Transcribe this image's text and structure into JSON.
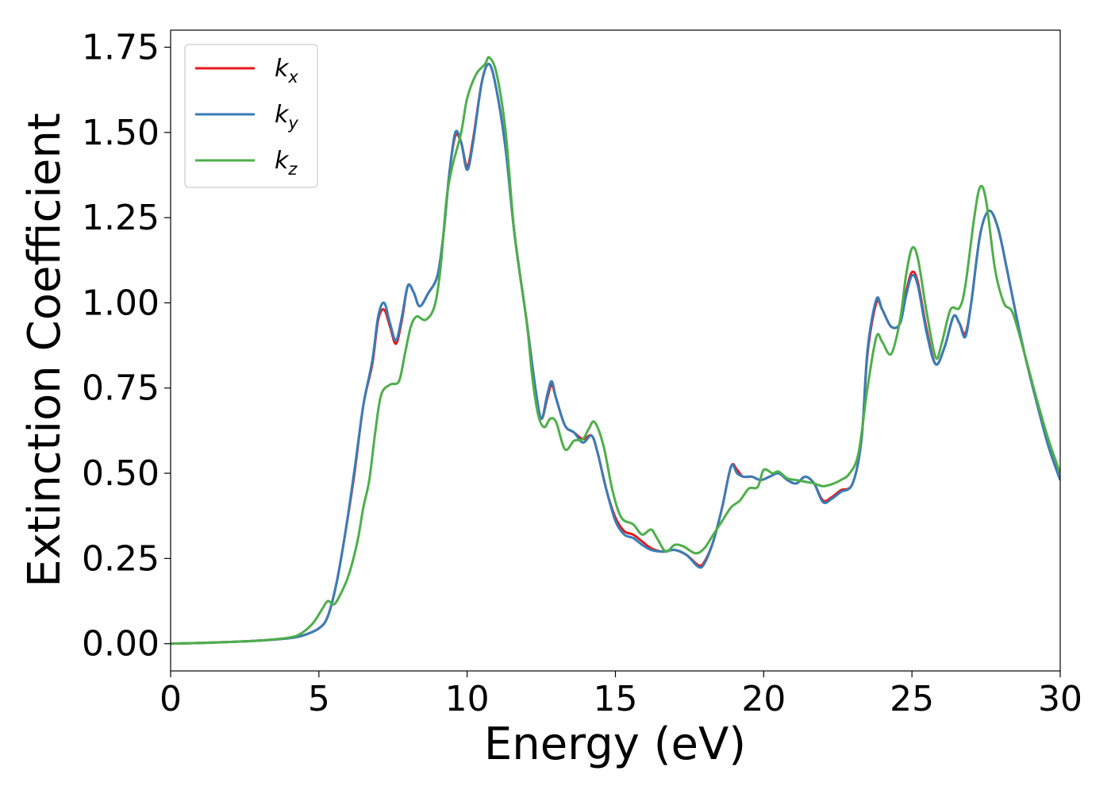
{
  "chart_data": {
    "type": "line",
    "xlabel": "Energy (eV)",
    "ylabel": "Extinction Coefficient",
    "xlim": [
      0,
      30
    ],
    "ylim": [
      -0.08,
      1.8
    ],
    "xticks": [
      "0",
      "5",
      "10",
      "15",
      "20",
      "25",
      "30"
    ],
    "yticks": [
      "0.00",
      "0.25",
      "0.50",
      "0.75",
      "1.00",
      "1.25",
      "1.50",
      "1.75"
    ],
    "grid": false,
    "legend_position": "top-left",
    "series": [
      {
        "name": "k",
        "subscript": "x",
        "color": "#e41a1c",
        "points": [
          [
            0,
            0
          ],
          [
            1,
            0.002
          ],
          [
            2,
            0.005
          ],
          [
            3,
            0.009
          ],
          [
            4,
            0.016
          ],
          [
            4.5,
            0.025
          ],
          [
            5,
            0.045
          ],
          [
            5.3,
            0.08
          ],
          [
            5.6,
            0.18
          ],
          [
            5.9,
            0.33
          ],
          [
            6.2,
            0.5
          ],
          [
            6.5,
            0.7
          ],
          [
            6.8,
            0.82
          ],
          [
            7.0,
            0.95
          ],
          [
            7.2,
            0.98
          ],
          [
            7.4,
            0.93
          ],
          [
            7.6,
            0.88
          ],
          [
            7.8,
            0.95
          ],
          [
            8.0,
            1.05
          ],
          [
            8.2,
            1.03
          ],
          [
            8.4,
            0.99
          ],
          [
            8.7,
            1.03
          ],
          [
            9.0,
            1.08
          ],
          [
            9.2,
            1.2
          ],
          [
            9.4,
            1.38
          ],
          [
            9.6,
            1.49
          ],
          [
            9.8,
            1.47
          ],
          [
            10.0,
            1.4
          ],
          [
            10.2,
            1.48
          ],
          [
            10.5,
            1.65
          ],
          [
            10.75,
            1.7
          ],
          [
            11.0,
            1.62
          ],
          [
            11.3,
            1.45
          ],
          [
            11.6,
            1.2
          ],
          [
            12.0,
            0.95
          ],
          [
            12.3,
            0.75
          ],
          [
            12.5,
            0.66
          ],
          [
            12.7,
            0.72
          ],
          [
            12.85,
            0.76
          ],
          [
            13.0,
            0.72
          ],
          [
            13.3,
            0.64
          ],
          [
            13.6,
            0.62
          ],
          [
            13.9,
            0.6
          ],
          [
            14.2,
            0.61
          ],
          [
            14.4,
            0.56
          ],
          [
            14.7,
            0.45
          ],
          [
            15.0,
            0.37
          ],
          [
            15.3,
            0.33
          ],
          [
            15.6,
            0.32
          ],
          [
            15.9,
            0.3
          ],
          [
            16.2,
            0.28
          ],
          [
            16.6,
            0.27
          ],
          [
            17.0,
            0.275
          ],
          [
            17.4,
            0.26
          ],
          [
            17.8,
            0.23
          ],
          [
            18.0,
            0.24
          ],
          [
            18.3,
            0.3
          ],
          [
            18.6,
            0.4
          ],
          [
            18.9,
            0.52
          ],
          [
            19.1,
            0.51
          ],
          [
            19.3,
            0.49
          ],
          [
            19.6,
            0.49
          ],
          [
            19.9,
            0.48
          ],
          [
            20.2,
            0.49
          ],
          [
            20.5,
            0.5
          ],
          [
            20.8,
            0.48
          ],
          [
            21.1,
            0.47
          ],
          [
            21.4,
            0.49
          ],
          [
            21.7,
            0.47
          ],
          [
            22.0,
            0.42
          ],
          [
            22.3,
            0.43
          ],
          [
            22.6,
            0.45
          ],
          [
            23.0,
            0.47
          ],
          [
            23.3,
            0.6
          ],
          [
            23.5,
            0.85
          ],
          [
            23.8,
            1.0
          ],
          [
            24.0,
            0.98
          ],
          [
            24.3,
            0.93
          ],
          [
            24.6,
            0.94
          ],
          [
            24.8,
            1.03
          ],
          [
            25.0,
            1.09
          ],
          [
            25.2,
            1.06
          ],
          [
            25.5,
            0.92
          ],
          [
            25.8,
            0.82
          ],
          [
            26.1,
            0.87
          ],
          [
            26.4,
            0.96
          ],
          [
            26.6,
            0.94
          ],
          [
            26.8,
            0.91
          ],
          [
            27.0,
            1.0
          ],
          [
            27.3,
            1.2
          ],
          [
            27.6,
            1.27
          ],
          [
            27.9,
            1.22
          ],
          [
            28.2,
            1.1
          ],
          [
            28.5,
            0.97
          ],
          [
            28.8,
            0.85
          ],
          [
            29.2,
            0.71
          ],
          [
            29.6,
            0.58
          ],
          [
            30.0,
            0.48
          ]
        ]
      },
      {
        "name": "k",
        "subscript": "y",
        "color": "#377eb8",
        "points": [
          [
            0,
            0
          ],
          [
            1,
            0.002
          ],
          [
            2,
            0.005
          ],
          [
            3,
            0.009
          ],
          [
            4,
            0.016
          ],
          [
            4.5,
            0.025
          ],
          [
            5,
            0.045
          ],
          [
            5.3,
            0.08
          ],
          [
            5.6,
            0.18
          ],
          [
            5.9,
            0.33
          ],
          [
            6.2,
            0.51
          ],
          [
            6.5,
            0.7
          ],
          [
            6.8,
            0.83
          ],
          [
            7.0,
            0.96
          ],
          [
            7.2,
            1.0
          ],
          [
            7.4,
            0.94
          ],
          [
            7.6,
            0.89
          ],
          [
            7.8,
            0.96
          ],
          [
            8.0,
            1.05
          ],
          [
            8.2,
            1.03
          ],
          [
            8.4,
            0.99
          ],
          [
            8.7,
            1.03
          ],
          [
            9.0,
            1.08
          ],
          [
            9.2,
            1.2
          ],
          [
            9.4,
            1.38
          ],
          [
            9.6,
            1.5
          ],
          [
            9.8,
            1.47
          ],
          [
            10.0,
            1.39
          ],
          [
            10.2,
            1.47
          ],
          [
            10.5,
            1.65
          ],
          [
            10.75,
            1.7
          ],
          [
            11.0,
            1.62
          ],
          [
            11.3,
            1.45
          ],
          [
            11.6,
            1.2
          ],
          [
            12.0,
            0.95
          ],
          [
            12.3,
            0.75
          ],
          [
            12.5,
            0.66
          ],
          [
            12.7,
            0.73
          ],
          [
            12.85,
            0.77
          ],
          [
            13.0,
            0.72
          ],
          [
            13.3,
            0.64
          ],
          [
            13.6,
            0.62
          ],
          [
            13.9,
            0.59
          ],
          [
            14.2,
            0.61
          ],
          [
            14.4,
            0.56
          ],
          [
            14.7,
            0.45
          ],
          [
            15.0,
            0.36
          ],
          [
            15.3,
            0.32
          ],
          [
            15.6,
            0.31
          ],
          [
            15.9,
            0.29
          ],
          [
            16.2,
            0.275
          ],
          [
            16.6,
            0.27
          ],
          [
            17.0,
            0.275
          ],
          [
            17.4,
            0.26
          ],
          [
            17.8,
            0.225
          ],
          [
            18.0,
            0.235
          ],
          [
            18.3,
            0.3
          ],
          [
            18.6,
            0.4
          ],
          [
            18.9,
            0.52
          ],
          [
            19.1,
            0.5
          ],
          [
            19.3,
            0.49
          ],
          [
            19.6,
            0.49
          ],
          [
            19.9,
            0.48
          ],
          [
            20.2,
            0.49
          ],
          [
            20.5,
            0.5
          ],
          [
            20.8,
            0.48
          ],
          [
            21.1,
            0.47
          ],
          [
            21.4,
            0.49
          ],
          [
            21.7,
            0.47
          ],
          [
            22.0,
            0.415
          ],
          [
            22.3,
            0.425
          ],
          [
            22.6,
            0.445
          ],
          [
            23.0,
            0.47
          ],
          [
            23.3,
            0.6
          ],
          [
            23.5,
            0.86
          ],
          [
            23.8,
            1.01
          ],
          [
            24.0,
            0.98
          ],
          [
            24.3,
            0.93
          ],
          [
            24.6,
            0.94
          ],
          [
            24.8,
            1.02
          ],
          [
            25.0,
            1.08
          ],
          [
            25.2,
            1.05
          ],
          [
            25.5,
            0.91
          ],
          [
            25.8,
            0.82
          ],
          [
            26.1,
            0.87
          ],
          [
            26.4,
            0.96
          ],
          [
            26.6,
            0.94
          ],
          [
            26.8,
            0.9
          ],
          [
            27.0,
            1.0
          ],
          [
            27.3,
            1.2
          ],
          [
            27.6,
            1.27
          ],
          [
            27.9,
            1.22
          ],
          [
            28.2,
            1.1
          ],
          [
            28.5,
            0.97
          ],
          [
            28.8,
            0.85
          ],
          [
            29.2,
            0.71
          ],
          [
            29.6,
            0.58
          ],
          [
            30.0,
            0.48
          ]
        ]
      },
      {
        "name": "k",
        "subscript": "z",
        "color": "#4daf4a",
        "points": [
          [
            0,
            0
          ],
          [
            1,
            0.002
          ],
          [
            2,
            0.005
          ],
          [
            3,
            0.009
          ],
          [
            4,
            0.018
          ],
          [
            4.4,
            0.03
          ],
          [
            4.8,
            0.06
          ],
          [
            5.1,
            0.1
          ],
          [
            5.3,
            0.125
          ],
          [
            5.5,
            0.115
          ],
          [
            5.7,
            0.14
          ],
          [
            6.0,
            0.2
          ],
          [
            6.3,
            0.3
          ],
          [
            6.5,
            0.4
          ],
          [
            6.7,
            0.48
          ],
          [
            6.9,
            0.62
          ],
          [
            7.1,
            0.73
          ],
          [
            7.4,
            0.76
          ],
          [
            7.7,
            0.77
          ],
          [
            7.9,
            0.85
          ],
          [
            8.1,
            0.93
          ],
          [
            8.3,
            0.96
          ],
          [
            8.6,
            0.95
          ],
          [
            8.9,
            0.99
          ],
          [
            9.1,
            1.1
          ],
          [
            9.3,
            1.3
          ],
          [
            9.5,
            1.4
          ],
          [
            9.8,
            1.5
          ],
          [
            10.0,
            1.6
          ],
          [
            10.3,
            1.67
          ],
          [
            10.6,
            1.7
          ],
          [
            10.75,
            1.72
          ],
          [
            11.0,
            1.67
          ],
          [
            11.3,
            1.5
          ],
          [
            11.6,
            1.2
          ],
          [
            12.0,
            0.95
          ],
          [
            12.2,
            0.78
          ],
          [
            12.4,
            0.67
          ],
          [
            12.6,
            0.635
          ],
          [
            12.8,
            0.66
          ],
          [
            13.0,
            0.65
          ],
          [
            13.3,
            0.57
          ],
          [
            13.6,
            0.595
          ],
          [
            13.9,
            0.6
          ],
          [
            14.1,
            0.63
          ],
          [
            14.3,
            0.65
          ],
          [
            14.6,
            0.58
          ],
          [
            14.9,
            0.45
          ],
          [
            15.2,
            0.37
          ],
          [
            15.6,
            0.35
          ],
          [
            15.9,
            0.32
          ],
          [
            16.2,
            0.335
          ],
          [
            16.4,
            0.31
          ],
          [
            16.7,
            0.27
          ],
          [
            17.0,
            0.29
          ],
          [
            17.3,
            0.285
          ],
          [
            17.7,
            0.265
          ],
          [
            18.0,
            0.28
          ],
          [
            18.3,
            0.32
          ],
          [
            18.6,
            0.36
          ],
          [
            18.9,
            0.4
          ],
          [
            19.2,
            0.42
          ],
          [
            19.5,
            0.455
          ],
          [
            19.8,
            0.46
          ],
          [
            20.0,
            0.51
          ],
          [
            20.3,
            0.5
          ],
          [
            20.5,
            0.505
          ],
          [
            20.8,
            0.485
          ],
          [
            21.1,
            0.48
          ],
          [
            21.4,
            0.475
          ],
          [
            21.7,
            0.47
          ],
          [
            22.0,
            0.462
          ],
          [
            22.3,
            0.468
          ],
          [
            22.6,
            0.48
          ],
          [
            22.9,
            0.5
          ],
          [
            23.2,
            0.56
          ],
          [
            23.5,
            0.75
          ],
          [
            23.8,
            0.9
          ],
          [
            24.0,
            0.885
          ],
          [
            24.3,
            0.85
          ],
          [
            24.6,
            0.95
          ],
          [
            24.8,
            1.08
          ],
          [
            25.0,
            1.16
          ],
          [
            25.2,
            1.13
          ],
          [
            25.5,
            0.97
          ],
          [
            25.8,
            0.84
          ],
          [
            26.0,
            0.88
          ],
          [
            26.3,
            0.98
          ],
          [
            26.6,
            0.985
          ],
          [
            26.8,
            1.05
          ],
          [
            27.1,
            1.25
          ],
          [
            27.3,
            1.34
          ],
          [
            27.5,
            1.3
          ],
          [
            27.8,
            1.1
          ],
          [
            28.1,
            1.0
          ],
          [
            28.4,
            0.97
          ],
          [
            28.8,
            0.85
          ],
          [
            29.2,
            0.72
          ],
          [
            29.6,
            0.6
          ],
          [
            30.0,
            0.5
          ]
        ]
      }
    ]
  }
}
